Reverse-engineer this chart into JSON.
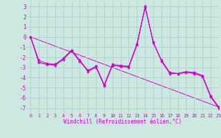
{
  "xlabel": "Windchill (Refroidissement éolien,°C)",
  "xlim": [
    -0.5,
    23
  ],
  "ylim": [
    -7.5,
    3.5
  ],
  "yticks": [
    -7,
    -6,
    -5,
    -4,
    -3,
    -2,
    -1,
    0,
    1,
    2,
    3
  ],
  "xticks": [
    0,
    1,
    2,
    3,
    4,
    5,
    6,
    7,
    8,
    9,
    10,
    11,
    12,
    13,
    14,
    15,
    16,
    17,
    18,
    19,
    20,
    21,
    22,
    23
  ],
  "background_color": "#cce8e0",
  "grid_color": "#aacccc",
  "line_color": "#cc00cc",
  "series1": [
    0,
    -2.5,
    -2.7,
    -2.8,
    -2.2,
    -1.3,
    -2.3,
    -3.4,
    -3.0,
    -4.8,
    -2.8,
    -2.9,
    -2.9,
    -0.7,
    3.0,
    -0.6,
    -2.3,
    -3.5,
    -3.6,
    -3.4,
    -3.5,
    -3.8,
    -5.8,
    -6.9
  ],
  "series2": [
    0,
    -2.5,
    -2.7,
    -2.7,
    -2.2,
    -1.4,
    -2.4,
    -3.3,
    -2.9,
    -4.8,
    -2.8,
    -2.9,
    -3.0,
    -0.8,
    2.9,
    -0.5,
    -2.4,
    -3.6,
    -3.6,
    -3.5,
    -3.6,
    -3.9,
    -5.9,
    -7.0
  ],
  "series3": [
    0,
    -2.3,
    -2.6,
    -2.7,
    -2.1,
    -1.3,
    -2.3,
    -3.3,
    -2.9,
    -4.7,
    -2.7,
    -2.8,
    -2.9,
    -0.7,
    3.0,
    -0.6,
    -2.3,
    -3.5,
    -3.6,
    -3.5,
    -3.5,
    -3.8,
    -5.8,
    -6.9
  ],
  "trend": [
    0.0,
    -6.9
  ],
  "trend_x": [
    0,
    23
  ]
}
